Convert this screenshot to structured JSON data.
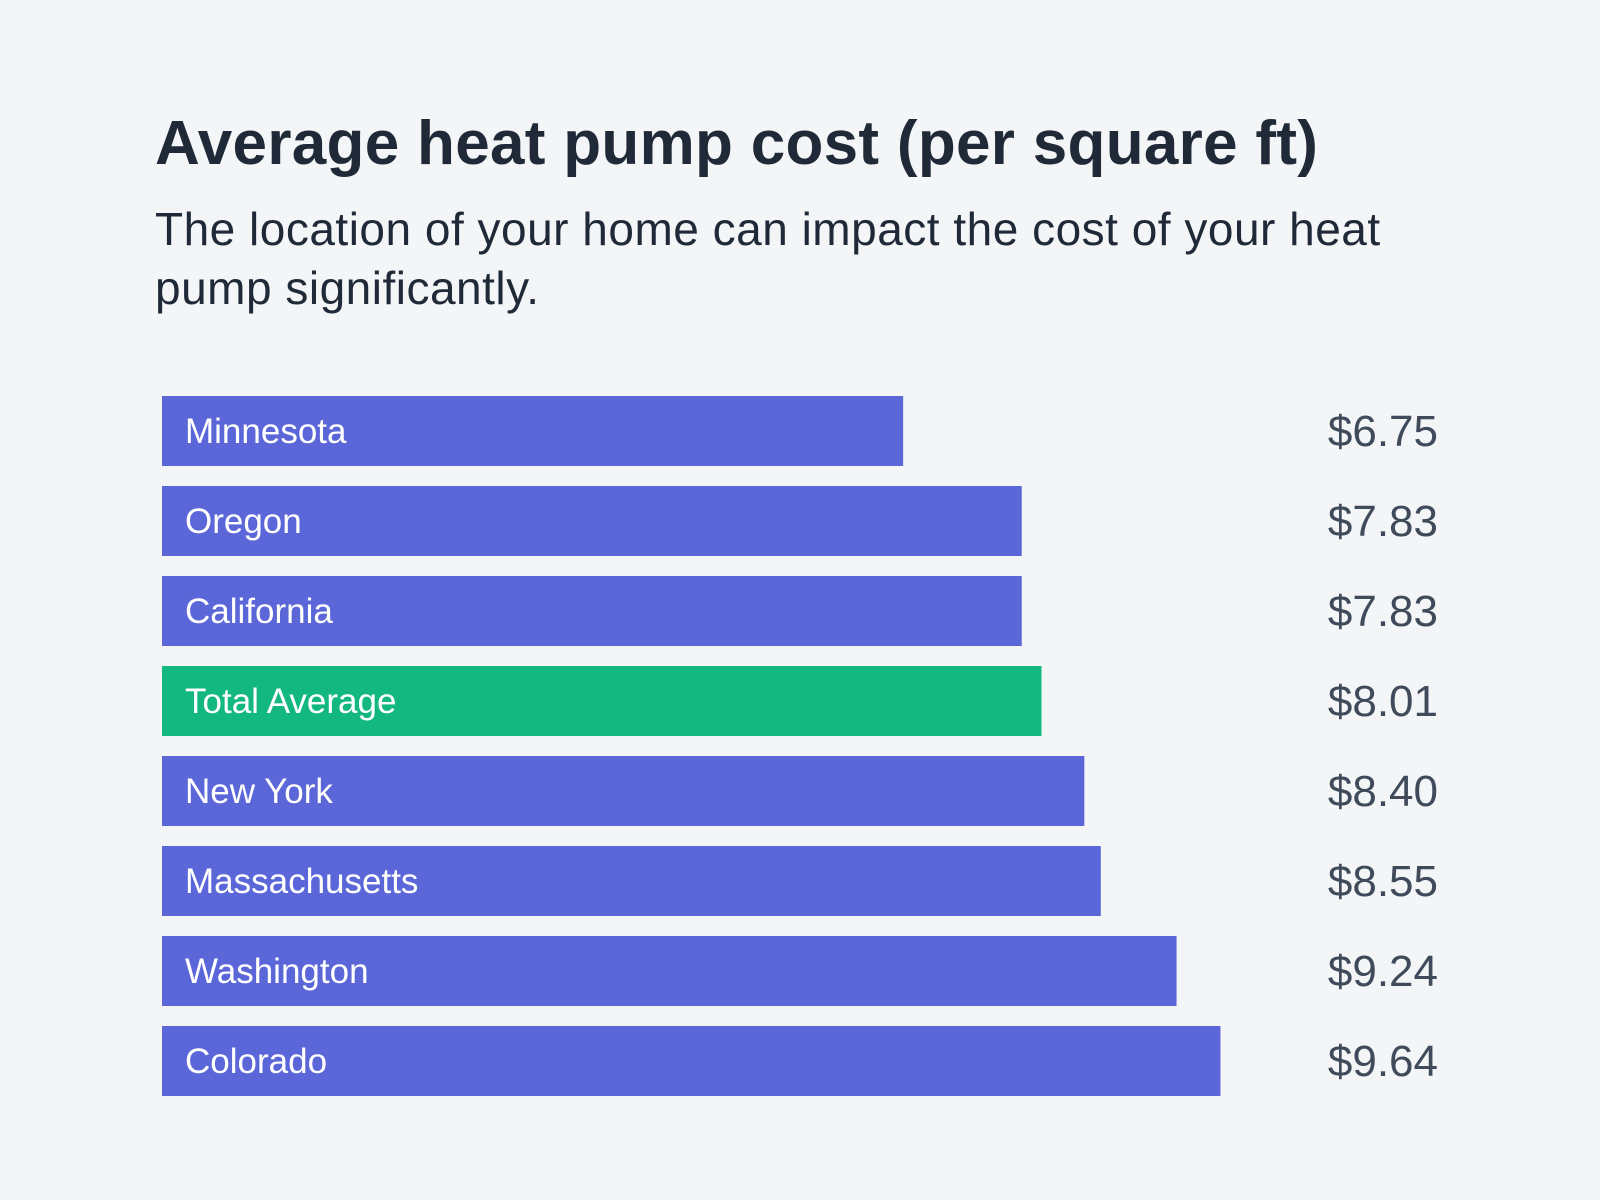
{
  "chart_data": {
    "type": "bar",
    "orientation": "horizontal",
    "title": "Average heat pump cost (per square ft)",
    "subtitle": "The location of your home can impact the cost of your heat pump significantly.",
    "categories": [
      "Minnesota",
      "Oregon",
      "California",
      "Total Average",
      "New York",
      "Massachusetts",
      "Washington",
      "Colorado"
    ],
    "values": [
      6.75,
      7.83,
      7.83,
      8.01,
      8.4,
      8.55,
      9.24,
      9.64
    ],
    "data_labels": [
      "$6.75",
      "$7.83",
      "$7.83",
      "$8.01",
      "$8.40",
      "$8.55",
      "$9.24",
      "$9.64"
    ],
    "highlight": "Total Average",
    "colors": {
      "bar": "#5b67d8",
      "highlight": "#13b780",
      "label_text": "#ffffff",
      "value_text": "#3f4a5a",
      "background": "#f3f5f7"
    },
    "xlim": [
      0,
      10
    ],
    "grid": false,
    "legend": "none"
  }
}
